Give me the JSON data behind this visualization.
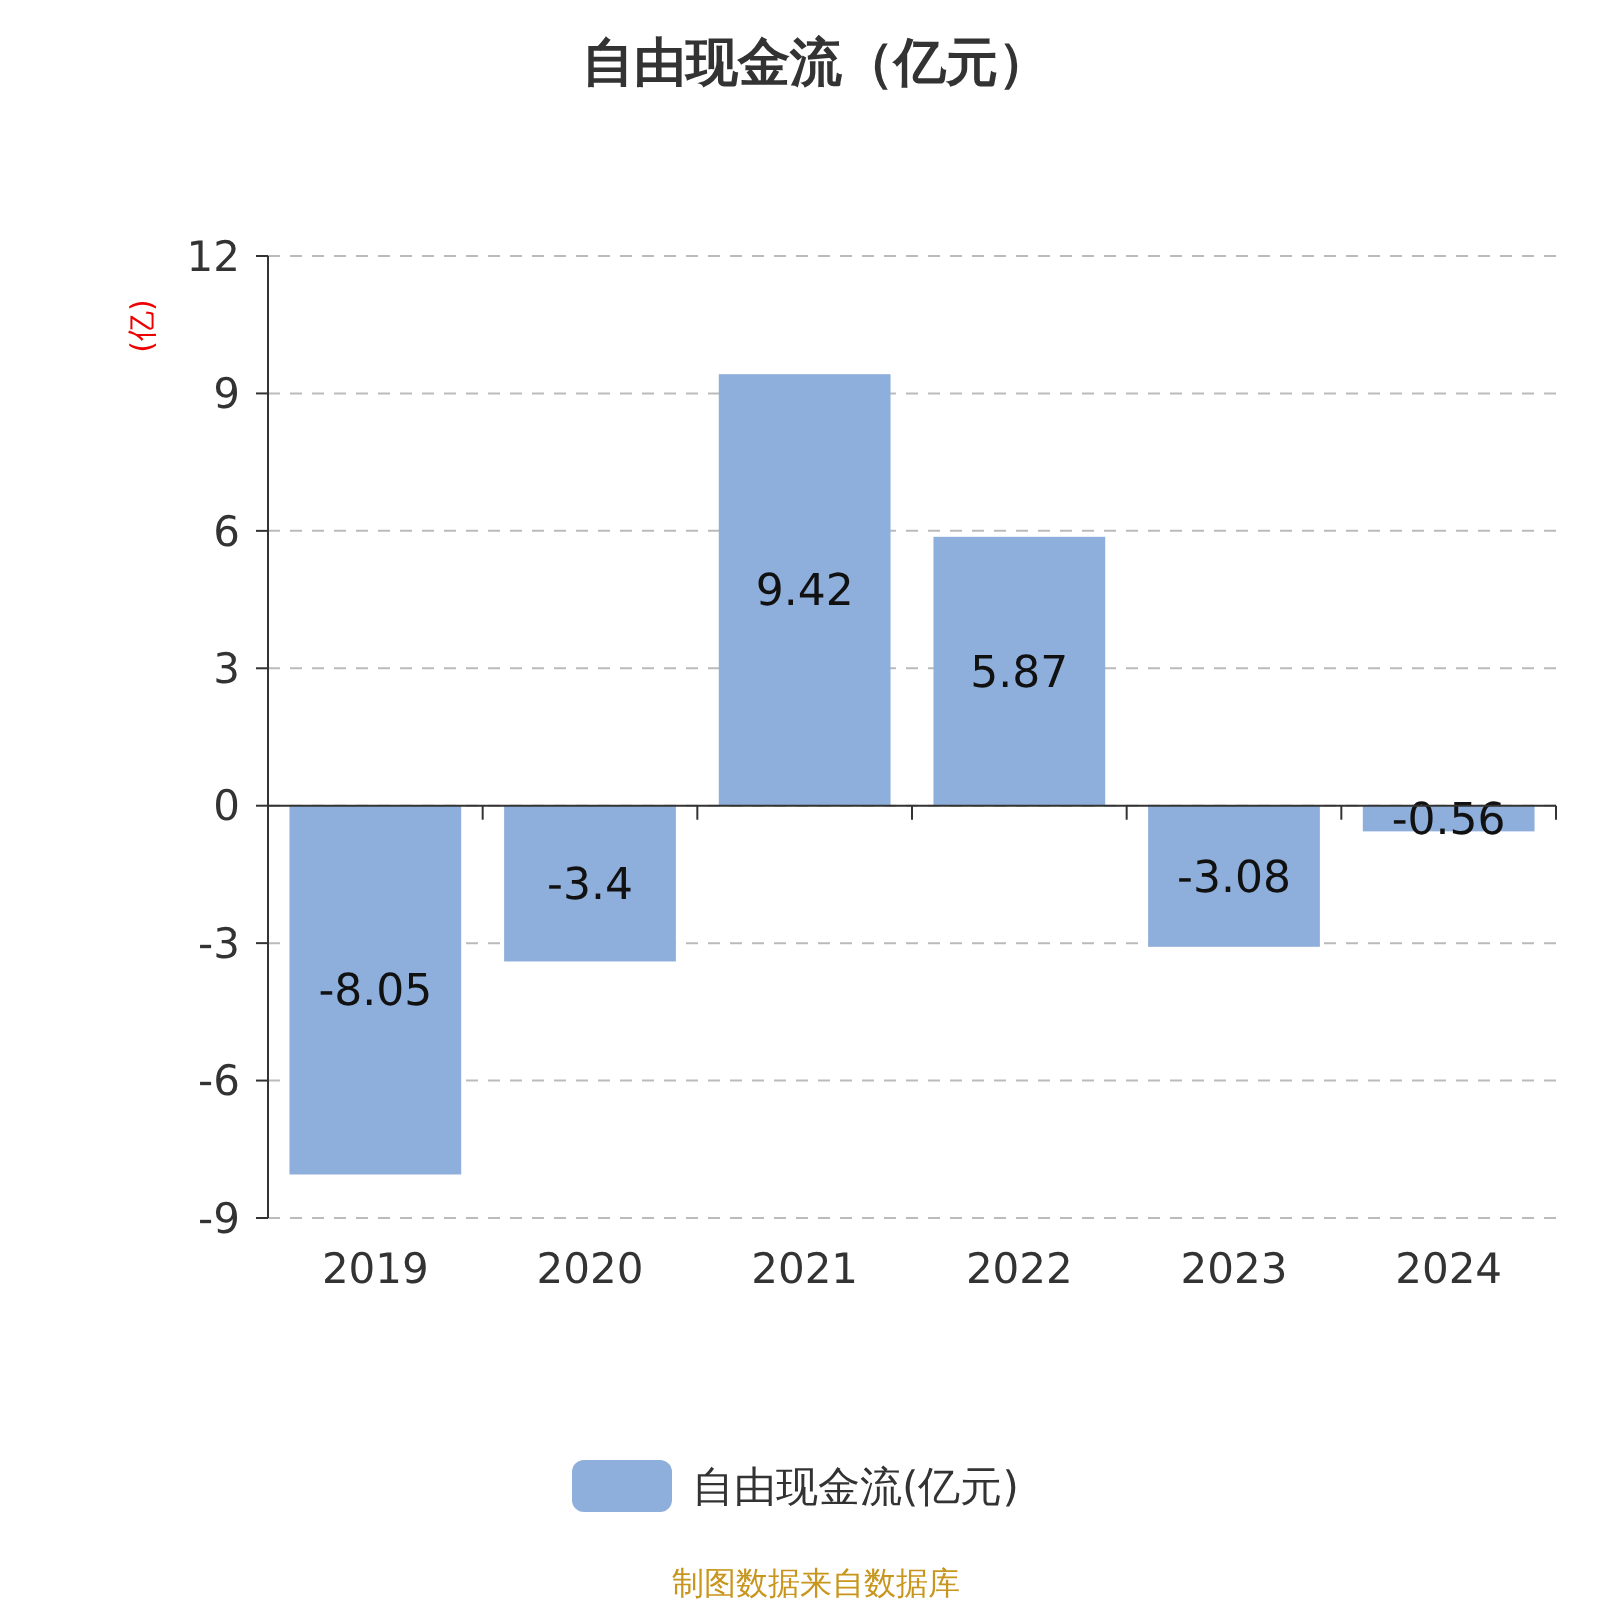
{
  "chart_data": {
    "type": "bar",
    "title": "自由现金流（亿元）",
    "ylabel": "(亿)",
    "categories": [
      "2019",
      "2020",
      "2021",
      "2022",
      "2023",
      "2024"
    ],
    "series": [
      {
        "name": "自由现金流(亿元)",
        "color": "#8eaedb",
        "values": [
          -8.05,
          -3.4,
          9.42,
          5.87,
          -3.08,
          -0.56
        ]
      }
    ],
    "ylim": [
      -9,
      12
    ],
    "yticks": [
      -9,
      -6,
      -3,
      0,
      3,
      6,
      9,
      12
    ],
    "grid": "y",
    "legend": "bottom",
    "data_labels": true,
    "annotations": [
      "制图数据来自数据库"
    ]
  }
}
